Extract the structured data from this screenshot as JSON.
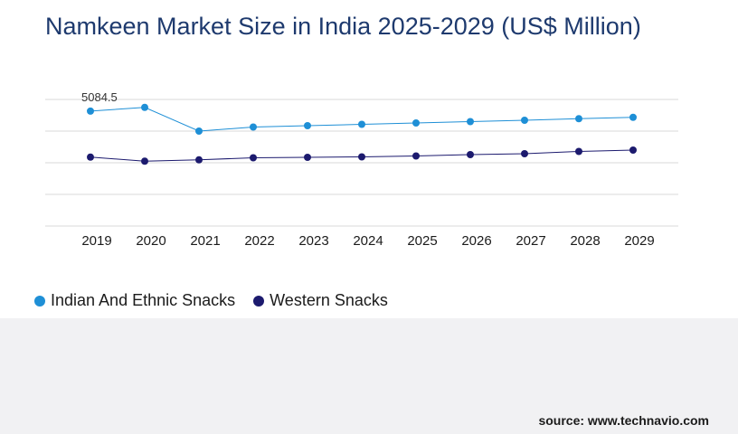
{
  "title": "Namkeen Market Size in India 2025-2029 (US$ Million)",
  "source": "source: www.technavio.com",
  "colors": {
    "indian": "#1e8fd6",
    "western": "#1c1a6e",
    "grid": "#d9d9d9",
    "title": "#1e3a6e"
  },
  "chart_data": {
    "type": "line",
    "title": "Namkeen Market Size in India 2025-2029 (US$ Million)",
    "xlabel": "",
    "ylabel": "",
    "categories": [
      "2019",
      "2020",
      "2021",
      "2022",
      "2023",
      "2024",
      "2025",
      "2026",
      "2027",
      "2028",
      "2029"
    ],
    "ylim": [
      0,
      7000
    ],
    "grid": true,
    "legend_position": "bottom-left",
    "annotations": [
      {
        "series": 0,
        "index": 0,
        "label": "5084.5"
      }
    ],
    "series": [
      {
        "name": "Indian And Ethnic Snacks",
        "color": "#1e8fd6",
        "values": [
          5084.5,
          5250,
          4200,
          4380,
          4440,
          4500,
          4560,
          4620,
          4680,
          4750,
          4810
        ]
      },
      {
        "name": "Western Snacks",
        "color": "#1c1a6e",
        "values": [
          3050,
          2870,
          2930,
          3020,
          3040,
          3060,
          3100,
          3160,
          3200,
          3300,
          3360
        ]
      }
    ]
  }
}
